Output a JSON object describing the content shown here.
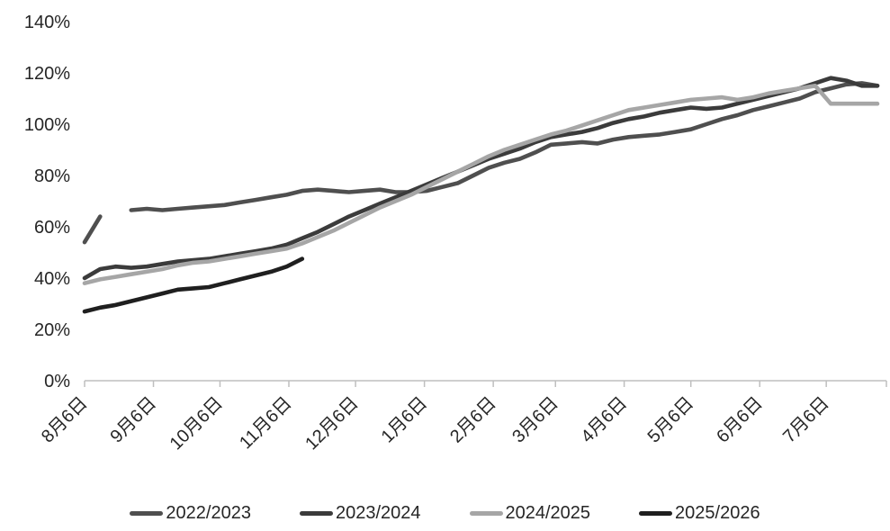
{
  "chart_data": {
    "type": "line",
    "title": "",
    "unit": "percent",
    "ylim": [
      0,
      140
    ],
    "y_tick_step": 20,
    "y_tick_labels": [
      "0%",
      "20%",
      "40%",
      "60%",
      "80%",
      "100%",
      "120%",
      "140%"
    ],
    "x_tick_labels": [
      "8月6日",
      "9月6日",
      "10月6日",
      "11月6日",
      "12月6日",
      "1月6日",
      "2月6日",
      "3月6日",
      "4月6日",
      "5月6日",
      "6月6日",
      "7月6日"
    ],
    "x_tick_positions": [
      0,
      4.43,
      8.71,
      13.14,
      17.43,
      21.86,
      26.29,
      30.29,
      34.71,
      39,
      43.43,
      47.71
    ],
    "x_total_points": 52,
    "grid": false,
    "legend_position": "bottom",
    "axis_color": "#bfbfbf",
    "text_color": "#262626",
    "series": [
      {
        "name": "2022/2023",
        "color": "#4f4f4f",
        "values": [
          54,
          64,
          null,
          66.5,
          67,
          66.5,
          67,
          67.5,
          68,
          68.5,
          69.5,
          70.5,
          71.5,
          72.5,
          74,
          74.5,
          74,
          73.5,
          74,
          74.5,
          73.5,
          73.5,
          74,
          75.5,
          77,
          80,
          83,
          85,
          86.5,
          89,
          92,
          92.5,
          93,
          92.5,
          94,
          95,
          95.5,
          96,
          97,
          98,
          100,
          102,
          103.5,
          105.5,
          107,
          108.5,
          110,
          112.5,
          114,
          115.5,
          116,
          115
        ]
      },
      {
        "name": "2023/2024",
        "color": "#3b3b3b",
        "values": [
          40,
          43.5,
          44.5,
          44,
          44.5,
          45.5,
          46.5,
          47,
          47.5,
          48.5,
          49.5,
          50.5,
          51.5,
          53,
          55.5,
          58,
          61,
          64,
          66.5,
          69,
          71.5,
          74,
          76.5,
          79,
          81.5,
          84,
          86.5,
          88.5,
          90.5,
          93,
          95,
          96,
          97,
          98.5,
          100.5,
          102,
          103,
          104.5,
          105.5,
          106.5,
          106,
          106.5,
          108,
          109.5,
          111,
          112.5,
          114,
          116,
          118,
          117,
          115,
          115
        ]
      },
      {
        "name": "2024/2025",
        "color": "#a6a6a6",
        "values": [
          38,
          39.5,
          40.5,
          41.5,
          42.5,
          43.5,
          45,
          46,
          46.5,
          47.5,
          48.5,
          49.5,
          50.5,
          51.5,
          53.5,
          56,
          58.5,
          61.5,
          64.5,
          67.5,
          70,
          72.5,
          75.5,
          78.5,
          81.5,
          84.5,
          87.5,
          90,
          92,
          94,
          96,
          97.5,
          99.5,
          101.5,
          103.5,
          105.5,
          106.5,
          107.5,
          108.5,
          109.5,
          110,
          110.5,
          109.5,
          110.5,
          112,
          113,
          114,
          115,
          108,
          108,
          108,
          108
        ]
      },
      {
        "name": "2025/2026",
        "color": "#1f1f1f",
        "values": [
          27,
          28.5,
          29.5,
          31,
          32.5,
          34,
          35.5,
          36,
          36.5,
          38,
          39.5,
          41,
          42.5,
          44.5,
          47.5
        ]
      }
    ]
  }
}
